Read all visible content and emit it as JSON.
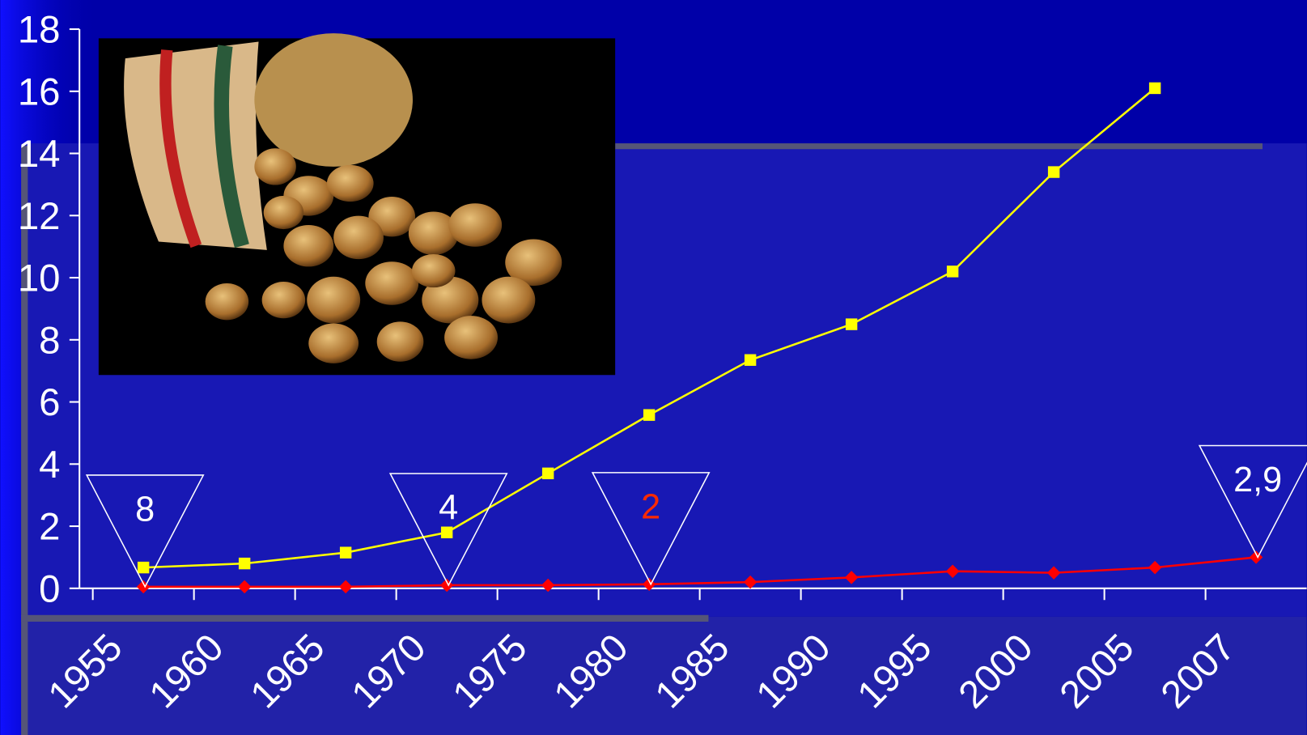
{
  "chart_data": {
    "type": "line",
    "categories": [
      "1955",
      "1960",
      "1965",
      "1970",
      "1975",
      "1980",
      "1985",
      "1990",
      "1995",
      "2000",
      "2005",
      "2007"
    ],
    "series": [
      {
        "color": "#ffff00",
        "marker": "square",
        "values": [
          0.67,
          0.8,
          1.15,
          1.8,
          3.7,
          5.58,
          7.35,
          8.5,
          10.2,
          13.4,
          16.1,
          null
        ]
      },
      {
        "color": "#ff0000",
        "marker": "diamond",
        "values": [
          0.05,
          0.05,
          0.05,
          0.1,
          0.1,
          0.13,
          0.2,
          0.35,
          0.55,
          0.5,
          0.67,
          1.0
        ]
      }
    ],
    "ylim": [
      0,
      18
    ],
    "yticks": [
      0,
      2,
      4,
      6,
      8,
      10,
      12,
      14,
      16,
      18
    ],
    "annotations": [
      {
        "text": "8",
        "category": "1955",
        "color": "#ffffff"
      },
      {
        "text": "4",
        "category": "1970",
        "color": "#ffffff"
      },
      {
        "text": "2",
        "category": "1980",
        "color": "#ff2a00"
      },
      {
        "text": "2,9",
        "category": "2007",
        "color": "#ffffff"
      }
    ]
  }
}
